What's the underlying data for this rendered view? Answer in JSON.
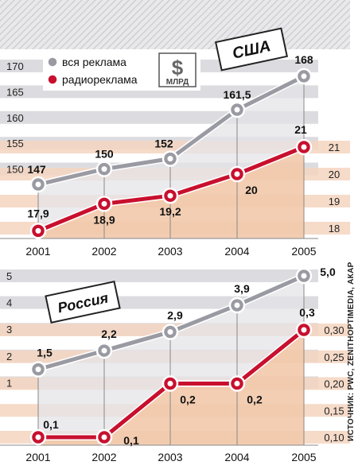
{
  "chart_data": [
    {
      "type": "line",
      "title": "США",
      "unit_badge": {
        "symbol": "$",
        "text": "МЛРД"
      },
      "categories": [
        "2001",
        "2002",
        "2003",
        "2004",
        "2005"
      ],
      "left_axis": {
        "ticks": [
          "150",
          "155",
          "160",
          "165",
          "170"
        ],
        "ylim": [
          145,
          172
        ]
      },
      "right_axis": {
        "ticks": [
          "18",
          "19",
          "20",
          "21"
        ],
        "ylim": [
          17.6,
          21.4
        ]
      },
      "legend_placement": "top-left",
      "series": [
        {
          "name": "вся реклама",
          "axis": "left",
          "color": "#9a9aa3",
          "values": [
            147,
            150,
            152,
            161.5,
            168
          ],
          "labels": [
            "147",
            "150",
            "152",
            "161,5",
            "168"
          ]
        },
        {
          "name": "радиореклама",
          "axis": "right",
          "color": "#c8102e",
          "values": [
            17.9,
            18.9,
            19.2,
            20,
            21
          ],
          "labels": [
            "17,9",
            "18,9",
            "19,2",
            "20",
            "21"
          ]
        }
      ]
    },
    {
      "type": "line",
      "title": "Россия",
      "categories": [
        "2001",
        "2002",
        "2003",
        "2004",
        "2005"
      ],
      "left_axis": {
        "ticks": [
          "1",
          "2",
          "3",
          "4",
          "5"
        ],
        "ylim": [
          0,
          5
        ]
      },
      "right_axis": {
        "ticks": [
          "0,10",
          "0,15",
          "0,20",
          "0,25",
          "0,30"
        ],
        "ylim": [
          0.1,
          0.3
        ]
      },
      "series": [
        {
          "name": "вся реклама",
          "axis": "left",
          "color": "#9a9aa3",
          "values": [
            1.5,
            2.2,
            2.9,
            3.9,
            5.0
          ],
          "labels": [
            "1,5",
            "2,2",
            "2,9",
            "3,9",
            "5,0"
          ]
        },
        {
          "name": "радиореклама",
          "axis": "right",
          "color": "#c8102e",
          "values": [
            0.1,
            0.1,
            0.2,
            0.2,
            0.3
          ],
          "labels": [
            "0,1",
            "0,1",
            "0,2",
            "0,2",
            "0,3"
          ]
        }
      ]
    }
  ],
  "source": "ИСТОЧНИК: PWC, ZENITHOPTIMEDIA, АКАР",
  "colors": {
    "gray_band": "#dcdce0",
    "peach_band": "#f5d5bf",
    "peach_fill": "#f2c9ab",
    "gray_fill": "#e4e4e8"
  }
}
